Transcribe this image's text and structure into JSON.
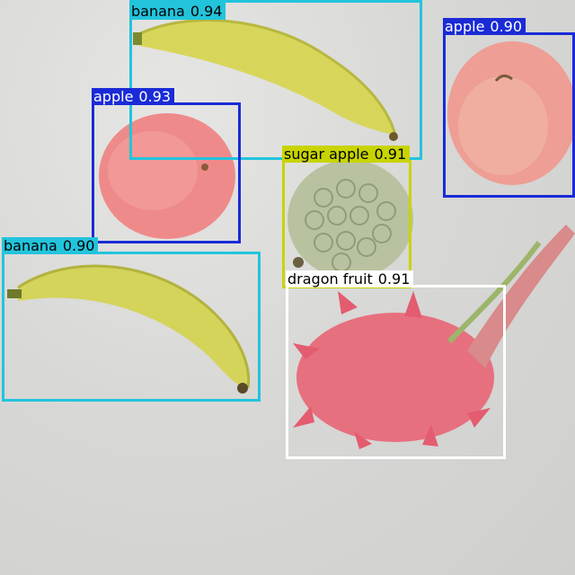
{
  "image": {
    "description_free": true
  },
  "colors": {
    "banana": "#22c4dc",
    "apple": "#1a2bd6",
    "sugar_apple": "#c8d400",
    "dragon_fruit": "#ffffff",
    "label_text_light": "#ffffff",
    "label_text_dark": "#000000"
  },
  "detections": [
    {
      "class": "banana",
      "score": "0.94"
    },
    {
      "class": "apple",
      "score": "0.90"
    },
    {
      "class": "apple",
      "score": "0.93"
    },
    {
      "class": "sugar apple",
      "score": "0.91"
    },
    {
      "class": "banana",
      "score": "0.90"
    },
    {
      "class": "dragon fruit",
      "score": "0.91"
    }
  ]
}
